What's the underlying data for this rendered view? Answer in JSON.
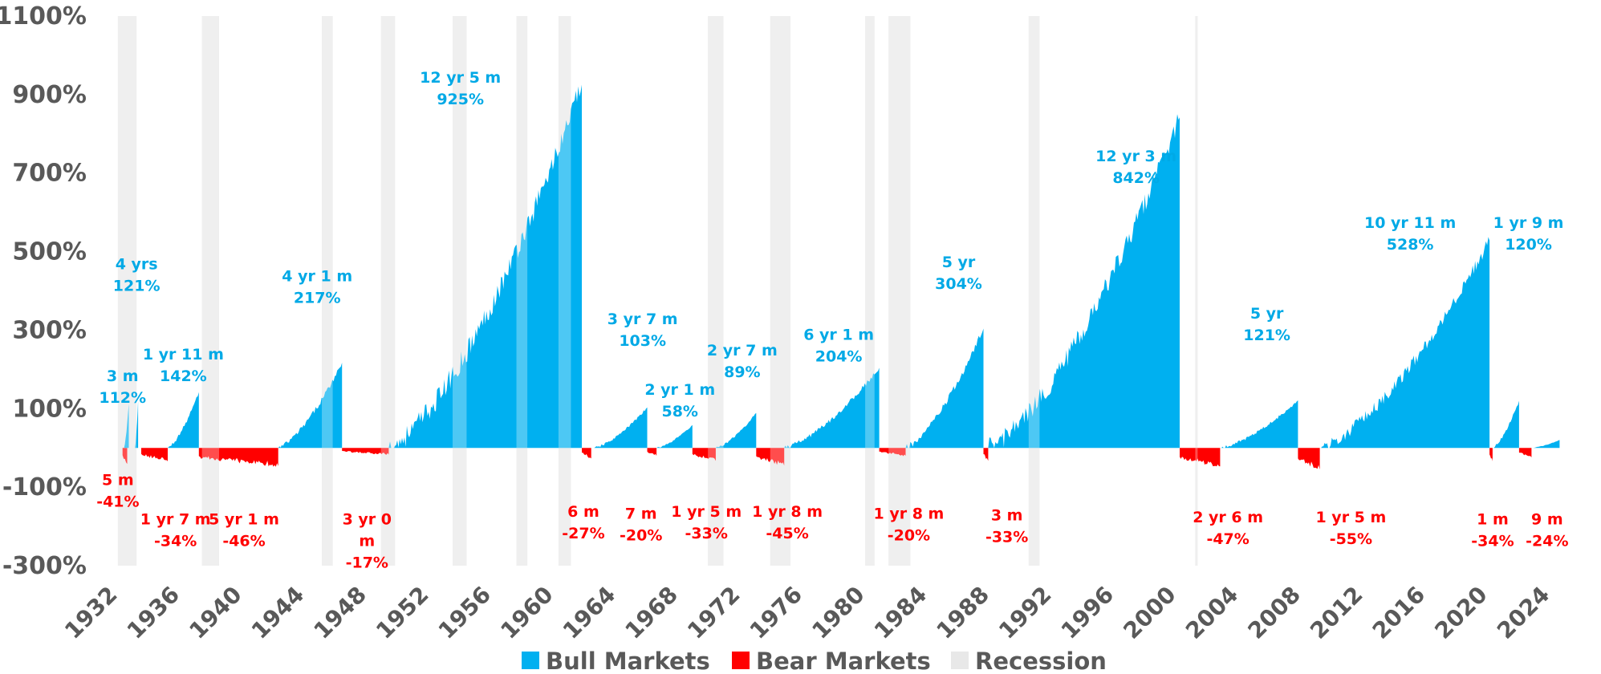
{
  "chart_data": {
    "type": "area",
    "title": "",
    "xlabel": "",
    "ylabel": "",
    "xlim": [
      1931.8,
      2025.2
    ],
    "ylim": [
      -300,
      1100
    ],
    "y_ticks": [
      "-300%",
      "-100%",
      "100%",
      "300%",
      "500%",
      "700%",
      "900%",
      "1100%"
    ],
    "y_tick_values": [
      -300,
      -100,
      100,
      300,
      500,
      700,
      900,
      1100
    ],
    "x_ticks": [
      1932,
      1936,
      1940,
      1944,
      1948,
      1952,
      1956,
      1960,
      1964,
      1968,
      1972,
      1976,
      1980,
      1984,
      1988,
      1992,
      1996,
      2000,
      2004,
      2008,
      2012,
      2016,
      2020,
      2024
    ],
    "x_tick_labels": [
      "1932",
      "1936",
      "1940",
      "1944",
      "1948",
      "1952",
      "1956",
      "1960",
      "1964",
      "1968",
      "1972",
      "1976",
      "1980",
      "1984",
      "1988",
      "1992",
      "1996",
      "2000",
      "2004",
      "2008",
      "2012",
      "2016",
      "2020",
      "2024"
    ],
    "grid": false,
    "legend_position": "bottom-center",
    "legend": [
      {
        "name": "Bull Markets",
        "color": "#00b0f0"
      },
      {
        "name": "Bear Markets",
        "color": "#ff0000"
      },
      {
        "name": "Recession",
        "color": "#e8e8e8"
      }
    ],
    "colors": {
      "bull": "#00b0f0",
      "bear": "#ff0000",
      "recession": "#e8e8e8",
      "bull_label": "#00a9e6",
      "bear_label": "#ff0000",
      "axis_text": "#595959"
    },
    "recessions": [
      [
        1932.0,
        1933.2
      ],
      [
        1937.4,
        1938.5
      ],
      [
        1945.1,
        1945.8
      ],
      [
        1948.9,
        1949.8
      ],
      [
        1953.5,
        1954.4
      ],
      [
        1957.6,
        1958.3
      ],
      [
        1960.3,
        1961.1
      ],
      [
        1969.9,
        1970.9
      ],
      [
        1973.9,
        1975.2
      ],
      [
        1980.0,
        1980.6
      ],
      [
        1981.5,
        1982.9
      ],
      [
        1990.5,
        1991.2
      ],
      [
        2001.2,
        2001.3
      ]
    ],
    "bull_markets": [
      {
        "start": 1932.4,
        "end": 1932.7,
        "gain": 112,
        "duration": "3 m",
        "label": "112%"
      },
      {
        "start": 1933.1,
        "end": 1933.3,
        "gain": 121,
        "duration": "4 yrs",
        "label": "121%"
      },
      {
        "start": 1935.2,
        "end": 1937.2,
        "gain": 142,
        "duration": "1 yr 11 m",
        "label": "142%"
      },
      {
        "start": 1942.3,
        "end": 1946.4,
        "gain": 217,
        "duration": "4 yr 1 m",
        "label": "217%"
      },
      {
        "start": 1949.4,
        "end": 1961.8,
        "gain": 925,
        "duration": "12 yr 5 m",
        "label": "925%"
      },
      {
        "start": 1962.6,
        "end": 1966.0,
        "gain": 103,
        "duration": "3 yr 7 m",
        "label": "103%"
      },
      {
        "start": 1966.6,
        "end": 1968.9,
        "gain": 58,
        "duration": "2 yr 1 m",
        "label": "58%"
      },
      {
        "start": 1970.4,
        "end": 1973.0,
        "gain": 89,
        "duration": "2 yr 7 m",
        "label": "89%"
      },
      {
        "start": 1974.8,
        "end": 1980.9,
        "gain": 204,
        "duration": "6 yr 1 m",
        "label": "204%"
      },
      {
        "start": 1982.6,
        "end": 1987.6,
        "gain": 304,
        "duration": "5 yr",
        "label": "304%"
      },
      {
        "start": 1987.9,
        "end": 2000.2,
        "gain": 842,
        "duration": "12 yr 3 m",
        "label": "842%"
      },
      {
        "start": 2002.8,
        "end": 2007.8,
        "gain": 121,
        "duration": "5 yr",
        "label": "121%"
      },
      {
        "start": 2009.2,
        "end": 2020.1,
        "gain": 528,
        "duration": "10 yr 11 m",
        "label": "528%"
      },
      {
        "start": 2020.3,
        "end": 2022.0,
        "gain": 120,
        "duration": "1 yr 9 m",
        "label": "120%"
      },
      {
        "start": 2022.8,
        "end": 2024.6,
        "gain": 20,
        "duration": "",
        "label": ""
      }
    ],
    "bear_markets": [
      {
        "start": 1932.3,
        "end": 1932.6,
        "decline": -41,
        "duration": "5 m",
        "label": "-41%"
      },
      {
        "start": 1933.5,
        "end": 1935.2,
        "decline": -34,
        "duration": "1 yr 7 m",
        "label": "-34%"
      },
      {
        "start": 1937.2,
        "end": 1942.3,
        "decline": -46,
        "duration": "5 yr 1 m",
        "label": "-46%"
      },
      {
        "start": 1946.4,
        "end": 1949.4,
        "decline": -17,
        "duration": "3 yr 0 m",
        "label": "-17%"
      },
      {
        "start": 1961.8,
        "end": 1962.4,
        "decline": -27,
        "duration": "6 m",
        "label": "-27%"
      },
      {
        "start": 1966.0,
        "end": 1966.6,
        "decline": -20,
        "duration": "7 m",
        "label": "-20%"
      },
      {
        "start": 1968.9,
        "end": 1970.4,
        "decline": -33,
        "duration": "1 yr 5 m",
        "label": "-33%"
      },
      {
        "start": 1973.0,
        "end": 1974.8,
        "decline": -45,
        "duration": "1 yr 8 m",
        "label": "-45%"
      },
      {
        "start": 1980.9,
        "end": 1982.6,
        "decline": -20,
        "duration": "1 yr 8 m",
        "label": "-20%"
      },
      {
        "start": 1987.6,
        "end": 1987.9,
        "decline": -33,
        "duration": "3 m",
        "label": "-33%"
      },
      {
        "start": 2000.2,
        "end": 2002.8,
        "decline": -47,
        "duration": "2 yr 6 m",
        "label": "-47%"
      },
      {
        "start": 2007.8,
        "end": 2009.2,
        "decline": -55,
        "duration": "1 yr 5 m",
        "label": "-55%"
      },
      {
        "start": 2020.1,
        "end": 2020.3,
        "decline": -34,
        "duration": "1 m",
        "label": "-34%"
      },
      {
        "start": 2022.0,
        "end": 2022.8,
        "decline": -24,
        "duration": "9 m",
        "label": "-24%"
      }
    ],
    "bull_annotations": [
      {
        "line1": "3 m",
        "line2": "112%",
        "x": 1932.3,
        "y": 170
      },
      {
        "line1": "4 yrs",
        "line2": "121%",
        "x": 1933.2,
        "y": 455
      },
      {
        "line1": "1 yr 11 m",
        "line2": "142%",
        "x": 1936.2,
        "y": 225
      },
      {
        "line1": "4 yr 1 m",
        "line2": "217%",
        "x": 1944.8,
        "y": 425
      },
      {
        "line1": "12 yr 5 m",
        "line2": "925%",
        "x": 1954.0,
        "y": 930
      },
      {
        "line1": "3 yr 7 m",
        "line2": "103%",
        "x": 1965.7,
        "y": 315
      },
      {
        "line1": "2 yr 1 m",
        "line2": "58%",
        "x": 1968.1,
        "y": 135
      },
      {
        "line1": "2 yr 7 m",
        "line2": "89%",
        "x": 1972.1,
        "y": 235
      },
      {
        "line1": "6 yr 1 m",
        "line2": "204%",
        "x": 1978.3,
        "y": 275
      },
      {
        "line1": "5 yr",
        "line2": "304%",
        "x": 1986.0,
        "y": 460
      },
      {
        "line1": "12 yr 3 m",
        "line2": "842%",
        "x": 1997.4,
        "y": 730
      },
      {
        "line1": "5 yr",
        "line2": "121%",
        "x": 2005.8,
        "y": 330
      },
      {
        "line1": "10 yr 11 m",
        "line2": "528%",
        "x": 2015.0,
        "y": 560
      },
      {
        "line1": "1 yr 9 m",
        "line2": "120%",
        "x": 2022.6,
        "y": 560
      }
    ],
    "bear_annotations": [
      {
        "line1": "5 m",
        "line2": "-41%",
        "x": 1932.0,
        "y": -95
      },
      {
        "line1": "1 yr 7 m",
        "line2": "-34%",
        "x": 1935.7,
        "y": -195
      },
      {
        "line1": "5 yr 1 m",
        "line2": "-46%",
        "x": 1940.1,
        "y": -195
      },
      {
        "line1": "3 yr 0",
        "line2": "m",
        "line3": "-17%",
        "x": 1948.0,
        "y": -195
      },
      {
        "line1": "6 m",
        "line2": "-27%",
        "x": 1961.9,
        "y": -175
      },
      {
        "line1": "7 m",
        "line2": "-20%",
        "x": 1965.6,
        "y": -180
      },
      {
        "line1": "1 yr 5 m",
        "line2": "-33%",
        "x": 1969.8,
        "y": -175
      },
      {
        "line1": "1 yr 8 m",
        "line2": "-45%",
        "x": 1975.0,
        "y": -175
      },
      {
        "line1": "1 yr 8 m",
        "line2": "-20%",
        "x": 1982.8,
        "y": -180
      },
      {
        "line1": "3 m",
        "line2": "-33%",
        "x": 1989.1,
        "y": -185
      },
      {
        "line1": "2 yr 6 m",
        "line2": "-47%",
        "x": 2003.3,
        "y": -190
      },
      {
        "line1": "1 yr 5 m",
        "line2": "-55%",
        "x": 2011.2,
        "y": -190
      },
      {
        "line1": "1 m",
        "line2": "-34%",
        "x": 2020.3,
        "y": -195
      },
      {
        "line1": "9 m",
        "line2": "-24%",
        "x": 2023.8,
        "y": -195
      }
    ]
  }
}
